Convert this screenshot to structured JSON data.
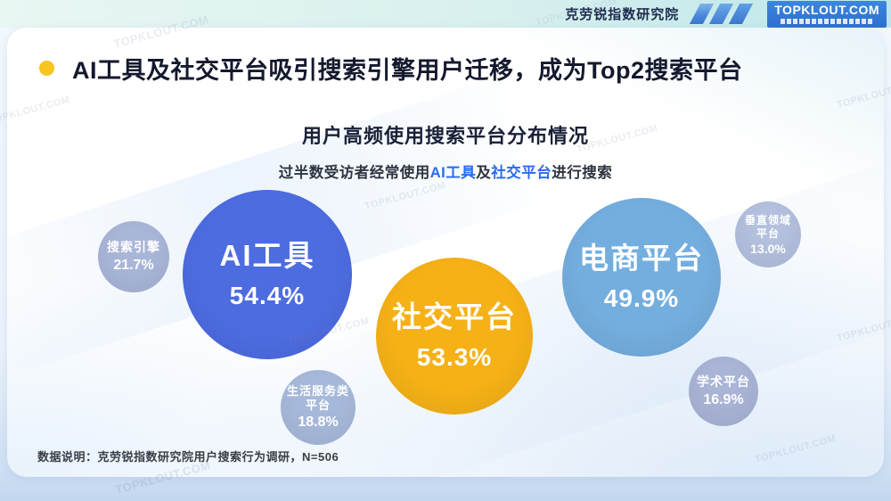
{
  "topbar": {
    "org_name": "克劳锐指数研究院",
    "logo_text": "TOPKLOUT.COM"
  },
  "header": {
    "title": "AI工具及社交平台吸引搜索引擎用户迁移，成为Top2搜索平台"
  },
  "chart": {
    "title": "用户高频使用搜索平台分布情况",
    "subtitle_prefix": "过半数受访者经常使用",
    "subtitle_highlight1": "AI工具",
    "subtitle_mid": "及",
    "subtitle_highlight2": "社交平台",
    "subtitle_suffix": "进行搜索"
  },
  "bubbles": [
    {
      "label": "AI工具",
      "label2": "",
      "pct": "54.4%",
      "color": "#4d6ce0"
    },
    {
      "label": "社交平台",
      "label2": "",
      "pct": "53.3%",
      "color": "#f5b116"
    },
    {
      "label": "电商平台",
      "label2": "",
      "pct": "49.9%",
      "color": "#74aede"
    },
    {
      "label": "搜索引擎",
      "label2": "",
      "pct": "21.7%",
      "color": "#a9b6d8"
    },
    {
      "label": "生活服务类",
      "label2": "平台",
      "pct": "18.8%",
      "color": "#a7b9da"
    },
    {
      "label": "垂直领域",
      "label2": "平台",
      "pct": "13.0%",
      "color": "#b3c0de"
    },
    {
      "label": "学术平台",
      "label2": "",
      "pct": "16.9%",
      "color": "#a9b4d6"
    }
  ],
  "footer": {
    "note": "数据说明：克劳锐指数研究院用户搜索行为调研，N=506"
  },
  "watermark": "TOPKLOUT.COM",
  "chart_data": {
    "type": "scatter",
    "variant": "bubble",
    "title": "用户高频使用搜索平台分布情况",
    "subtitle": "过半数受访者经常使用AI工具及社交平台进行搜索",
    "categories": [
      "AI工具",
      "社交平台",
      "电商平台",
      "搜索引擎",
      "生活服务类平台",
      "学术平台",
      "垂直领域平台"
    ],
    "values": [
      54.4,
      53.3,
      49.9,
      21.7,
      18.8,
      16.9,
      13.0
    ],
    "unit": "%",
    "legend_position": "none",
    "grid": false,
    "colors": [
      "#4d6ce0",
      "#f5b116",
      "#74aede",
      "#a9b6d8",
      "#a7b9da",
      "#a9b4d6",
      "#b3c0de"
    ],
    "source_note": "数据说明：克劳锐指数研究院用户搜索行为调研，N=506",
    "sample_size": "N=506"
  }
}
